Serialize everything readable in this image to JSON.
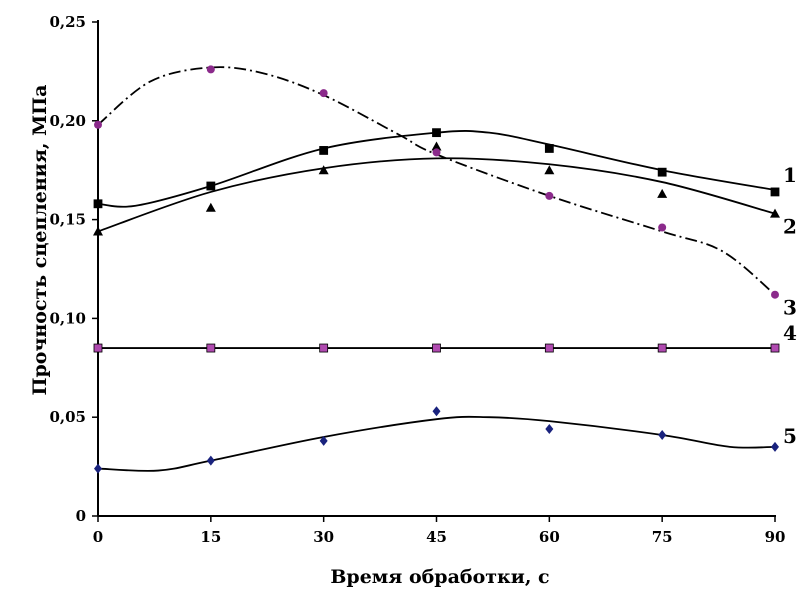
{
  "chart_data": {
    "type": "scatter",
    "title": "",
    "xlabel": "Время обработки, с",
    "ylabel": "Прочность сцепления, МПа",
    "xlim": [
      0,
      90
    ],
    "ylim": [
      0,
      0.25
    ],
    "x_ticks": [
      0,
      15,
      30,
      45,
      60,
      75,
      90
    ],
    "x_tick_labels": [
      "0",
      "15",
      "30",
      "45",
      "60",
      "75",
      "90"
    ],
    "y_ticks": [
      0,
      0.05,
      0.1,
      0.15,
      0.2,
      0.25
    ],
    "y_tick_labels": [
      "0",
      "0,05",
      "0,10",
      "0,15",
      "0,20",
      "0,25"
    ],
    "grid": false,
    "legend": "none",
    "series": [
      {
        "name": "1",
        "marker": "square",
        "line_style": "solid",
        "color": "#000000",
        "x": [
          0,
          15,
          30,
          45,
          60,
          75,
          90
        ],
        "y": [
          0.158,
          0.167,
          0.185,
          0.194,
          0.186,
          0.174,
          0.164
        ],
        "trend": [
          [
            0,
            0.158
          ],
          [
            5,
            0.157
          ],
          [
            15,
            0.167
          ],
          [
            30,
            0.186
          ],
          [
            45,
            0.194
          ],
          [
            52,
            0.194
          ],
          [
            60,
            0.188
          ],
          [
            75,
            0.175
          ],
          [
            90,
            0.165
          ]
        ]
      },
      {
        "name": "2",
        "marker": "triangle",
        "line_style": "solid",
        "color": "#000000",
        "x": [
          0,
          15,
          30,
          45,
          60,
          75,
          90
        ],
        "y": [
          0.144,
          0.156,
          0.175,
          0.187,
          0.175,
          0.163,
          0.153
        ],
        "trend": [
          [
            0,
            0.144
          ],
          [
            15,
            0.164
          ],
          [
            30,
            0.176
          ],
          [
            45,
            0.181
          ],
          [
            60,
            0.178
          ],
          [
            75,
            0.169
          ],
          [
            90,
            0.153
          ]
        ]
      },
      {
        "name": "3",
        "marker": "circle",
        "line_style": "dash-dot",
        "color": "#8b2a8b",
        "x": [
          0,
          15,
          30,
          45,
          60,
          75,
          90
        ],
        "y": [
          0.198,
          0.226,
          0.214,
          0.184,
          0.162,
          0.146,
          0.112
        ],
        "trend": [
          [
            0,
            0.198
          ],
          [
            7,
            0.22
          ],
          [
            15,
            0.227
          ],
          [
            22,
            0.224
          ],
          [
            30,
            0.213
          ],
          [
            40,
            0.193
          ],
          [
            45,
            0.183
          ],
          [
            60,
            0.162
          ],
          [
            75,
            0.144
          ],
          [
            83,
            0.134
          ],
          [
            90,
            0.112
          ]
        ]
      },
      {
        "name": "4",
        "marker": "square",
        "line_style": "solid",
        "color": "#b04ab0",
        "x": [
          0,
          15,
          30,
          45,
          60,
          75,
          90
        ],
        "y": [
          0.085,
          0.085,
          0.085,
          0.085,
          0.085,
          0.085,
          0.085
        ],
        "trend": [
          [
            0,
            0.085
          ],
          [
            90,
            0.085
          ]
        ]
      },
      {
        "name": "5",
        "marker": "diamond",
        "line_style": "solid",
        "color": "#1a237e",
        "x": [
          0,
          15,
          30,
          45,
          60,
          75,
          90
        ],
        "y": [
          0.024,
          0.028,
          0.038,
          0.053,
          0.044,
          0.041,
          0.035
        ],
        "trend": [
          [
            0,
            0.024
          ],
          [
            8,
            0.023
          ],
          [
            15,
            0.028
          ],
          [
            30,
            0.04
          ],
          [
            45,
            0.049
          ],
          [
            52,
            0.05
          ],
          [
            60,
            0.048
          ],
          [
            75,
            0.041
          ],
          [
            84,
            0.035
          ],
          [
            90,
            0.035
          ]
        ]
      }
    ]
  }
}
